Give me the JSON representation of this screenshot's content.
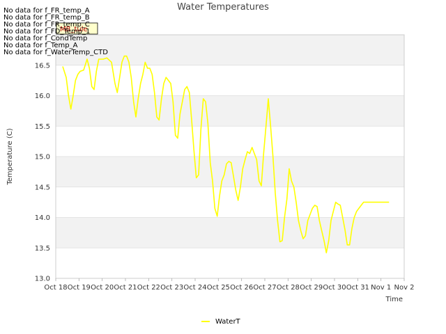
{
  "no_data_messages": [
    "No data for f_FR_temp_A",
    "No data for f_FR_temp_B",
    "No data for f_FR_temp_C",
    "No data for f_FD_Temp_1",
    "No data for f_CondTemp",
    "No data for f_Temp_A",
    "No data for f_WaterTemp_CTD"
  ],
  "site_tag": "MB_tule",
  "colors": {
    "series": "#ffff00",
    "band": "#f2f2f2",
    "grid": "#dddddd",
    "axis": "#aaaaaa"
  },
  "chart_data": {
    "type": "line",
    "title": "Water Temperatures",
    "xlabel": "Time",
    "ylabel": "Temperature (C)",
    "xlim": [
      0,
      15
    ],
    "ylim": [
      13.0,
      17.0
    ],
    "yticks": [
      13.0,
      13.5,
      14.0,
      14.5,
      15.0,
      15.5,
      16.0,
      16.5
    ],
    "xtick_positions": [
      0,
      1,
      2,
      3,
      4,
      5,
      6,
      7,
      8,
      9,
      10,
      11,
      12,
      13,
      14,
      15
    ],
    "xtick_labels": [
      "Oct 18",
      "Oct 19",
      "Oct 20",
      "Oct 21",
      "Oct 22",
      "Oct 23",
      "Oct 24",
      "Oct 25",
      "Oct 26",
      "Oct 27",
      "Oct 28",
      "Oct 29",
      "Oct 30",
      "Oct 31",
      "Nov 1",
      "Nov 2"
    ],
    "legend": "bottom-center",
    "grid": true,
    "series": [
      {
        "name": "WaterT",
        "x": [
          0.3,
          0.45,
          0.55,
          0.65,
          0.75,
          0.85,
          0.95,
          1.05,
          1.2,
          1.35,
          1.45,
          1.55,
          1.65,
          1.75,
          1.85,
          1.95,
          2.05,
          2.2,
          2.4,
          2.55,
          2.65,
          2.75,
          2.85,
          2.95,
          3.05,
          3.15,
          3.25,
          3.35,
          3.45,
          3.55,
          3.65,
          3.75,
          3.85,
          3.95,
          4.05,
          4.15,
          4.25,
          4.35,
          4.45,
          4.55,
          4.65,
          4.75,
          4.85,
          4.95,
          5.05,
          5.15,
          5.25,
          5.35,
          5.45,
          5.55,
          5.65,
          5.75,
          5.85,
          5.95,
          6.05,
          6.15,
          6.25,
          6.35,
          6.45,
          6.55,
          6.65,
          6.75,
          6.85,
          6.95,
          7.05,
          7.15,
          7.25,
          7.35,
          7.45,
          7.55,
          7.65,
          7.75,
          7.85,
          7.95,
          8.05,
          8.15,
          8.25,
          8.35,
          8.45,
          8.55,
          8.65,
          8.75,
          8.85,
          8.95,
          9.05,
          9.15,
          9.25,
          9.35,
          9.45,
          9.55,
          9.65,
          9.75,
          9.85,
          9.95,
          10.05,
          10.15,
          10.25,
          10.35,
          10.45,
          10.55,
          10.65,
          10.75,
          10.85,
          10.95,
          11.05,
          11.15,
          11.25,
          11.35,
          11.45,
          11.55,
          11.65,
          11.75,
          11.85,
          11.95,
          12.05,
          12.15,
          12.25,
          12.35,
          12.45,
          12.55,
          12.65,
          12.75,
          12.85,
          12.95,
          13.05,
          13.15,
          13.25,
          13.35,
          13.45,
          13.55,
          13.65,
          13.75,
          13.85,
          13.95,
          14.05,
          14.15,
          14.25,
          14.35
        ],
        "values": [
          16.48,
          16.3,
          16.0,
          15.78,
          16.0,
          16.25,
          16.35,
          16.4,
          16.42,
          16.6,
          16.45,
          16.15,
          16.1,
          16.4,
          16.6,
          16.6,
          16.6,
          16.62,
          16.55,
          16.2,
          16.05,
          16.3,
          16.55,
          16.65,
          16.65,
          16.55,
          16.3,
          15.9,
          15.65,
          15.95,
          16.2,
          16.35,
          16.55,
          16.45,
          16.45,
          16.35,
          16.05,
          15.65,
          15.6,
          15.95,
          16.2,
          16.3,
          16.25,
          16.2,
          15.9,
          15.35,
          15.3,
          15.7,
          15.9,
          16.1,
          16.15,
          16.05,
          15.6,
          15.1,
          14.65,
          14.7,
          15.45,
          15.95,
          15.9,
          15.55,
          14.9,
          14.6,
          14.15,
          14.02,
          14.35,
          14.6,
          14.7,
          14.88,
          14.92,
          14.9,
          14.68,
          14.45,
          14.28,
          14.5,
          14.8,
          14.95,
          15.08,
          15.05,
          15.15,
          15.05,
          14.95,
          14.6,
          14.52,
          15.05,
          15.5,
          15.95,
          15.5,
          15.0,
          14.4,
          13.95,
          13.6,
          13.62,
          14.0,
          14.3,
          14.8,
          14.6,
          14.5,
          14.25,
          13.95,
          13.78,
          13.65,
          13.7,
          13.95,
          14.05,
          14.15,
          14.2,
          14.18,
          13.95,
          13.78,
          13.62,
          13.42,
          13.62,
          13.95,
          14.1,
          14.25,
          14.22,
          14.2,
          14.0,
          13.8,
          13.55,
          13.55,
          13.82,
          14.0,
          14.1,
          14.15,
          14.2,
          14.25,
          14.25,
          14.25,
          14.25,
          14.25,
          14.25,
          14.25,
          14.25,
          14.25,
          14.25,
          14.25,
          14.25
        ]
      }
    ]
  }
}
